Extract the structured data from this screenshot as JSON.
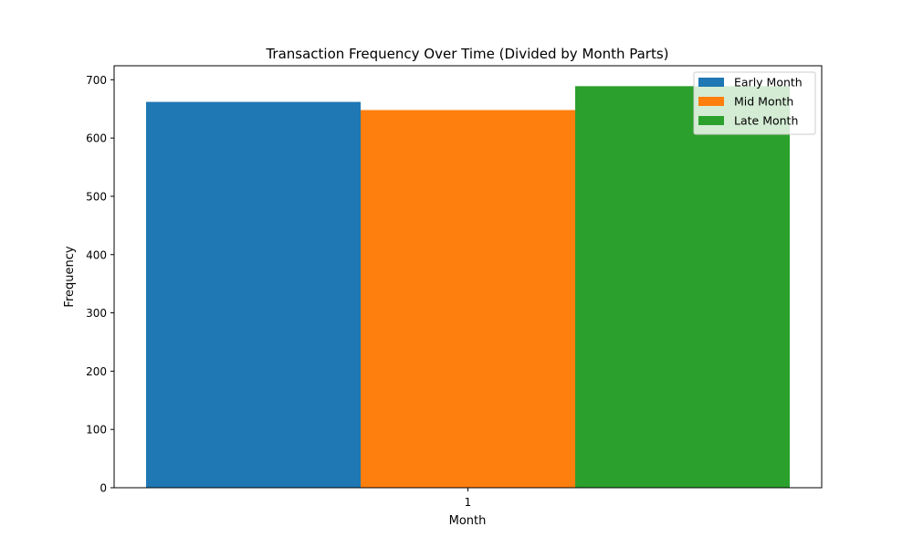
{
  "chart_data": {
    "type": "bar",
    "title": "Transaction Frequency Over Time (Divided by Month Parts)",
    "xlabel": "Month",
    "ylabel": "Frequency",
    "categories": [
      "1"
    ],
    "series": [
      {
        "name": "Early Month",
        "values": [
          662
        ],
        "color": "#1f77b4"
      },
      {
        "name": "Mid Month",
        "values": [
          648
        ],
        "color": "#ff7f0e"
      },
      {
        "name": "Late Month",
        "values": [
          689
        ],
        "color": "#2ca02c"
      }
    ],
    "ylim": [
      0,
      724
    ],
    "yticks": [
      "0",
      "100",
      "200",
      "300",
      "400",
      "500",
      "600",
      "700"
    ],
    "grid": false,
    "legend_position": "top-right"
  }
}
